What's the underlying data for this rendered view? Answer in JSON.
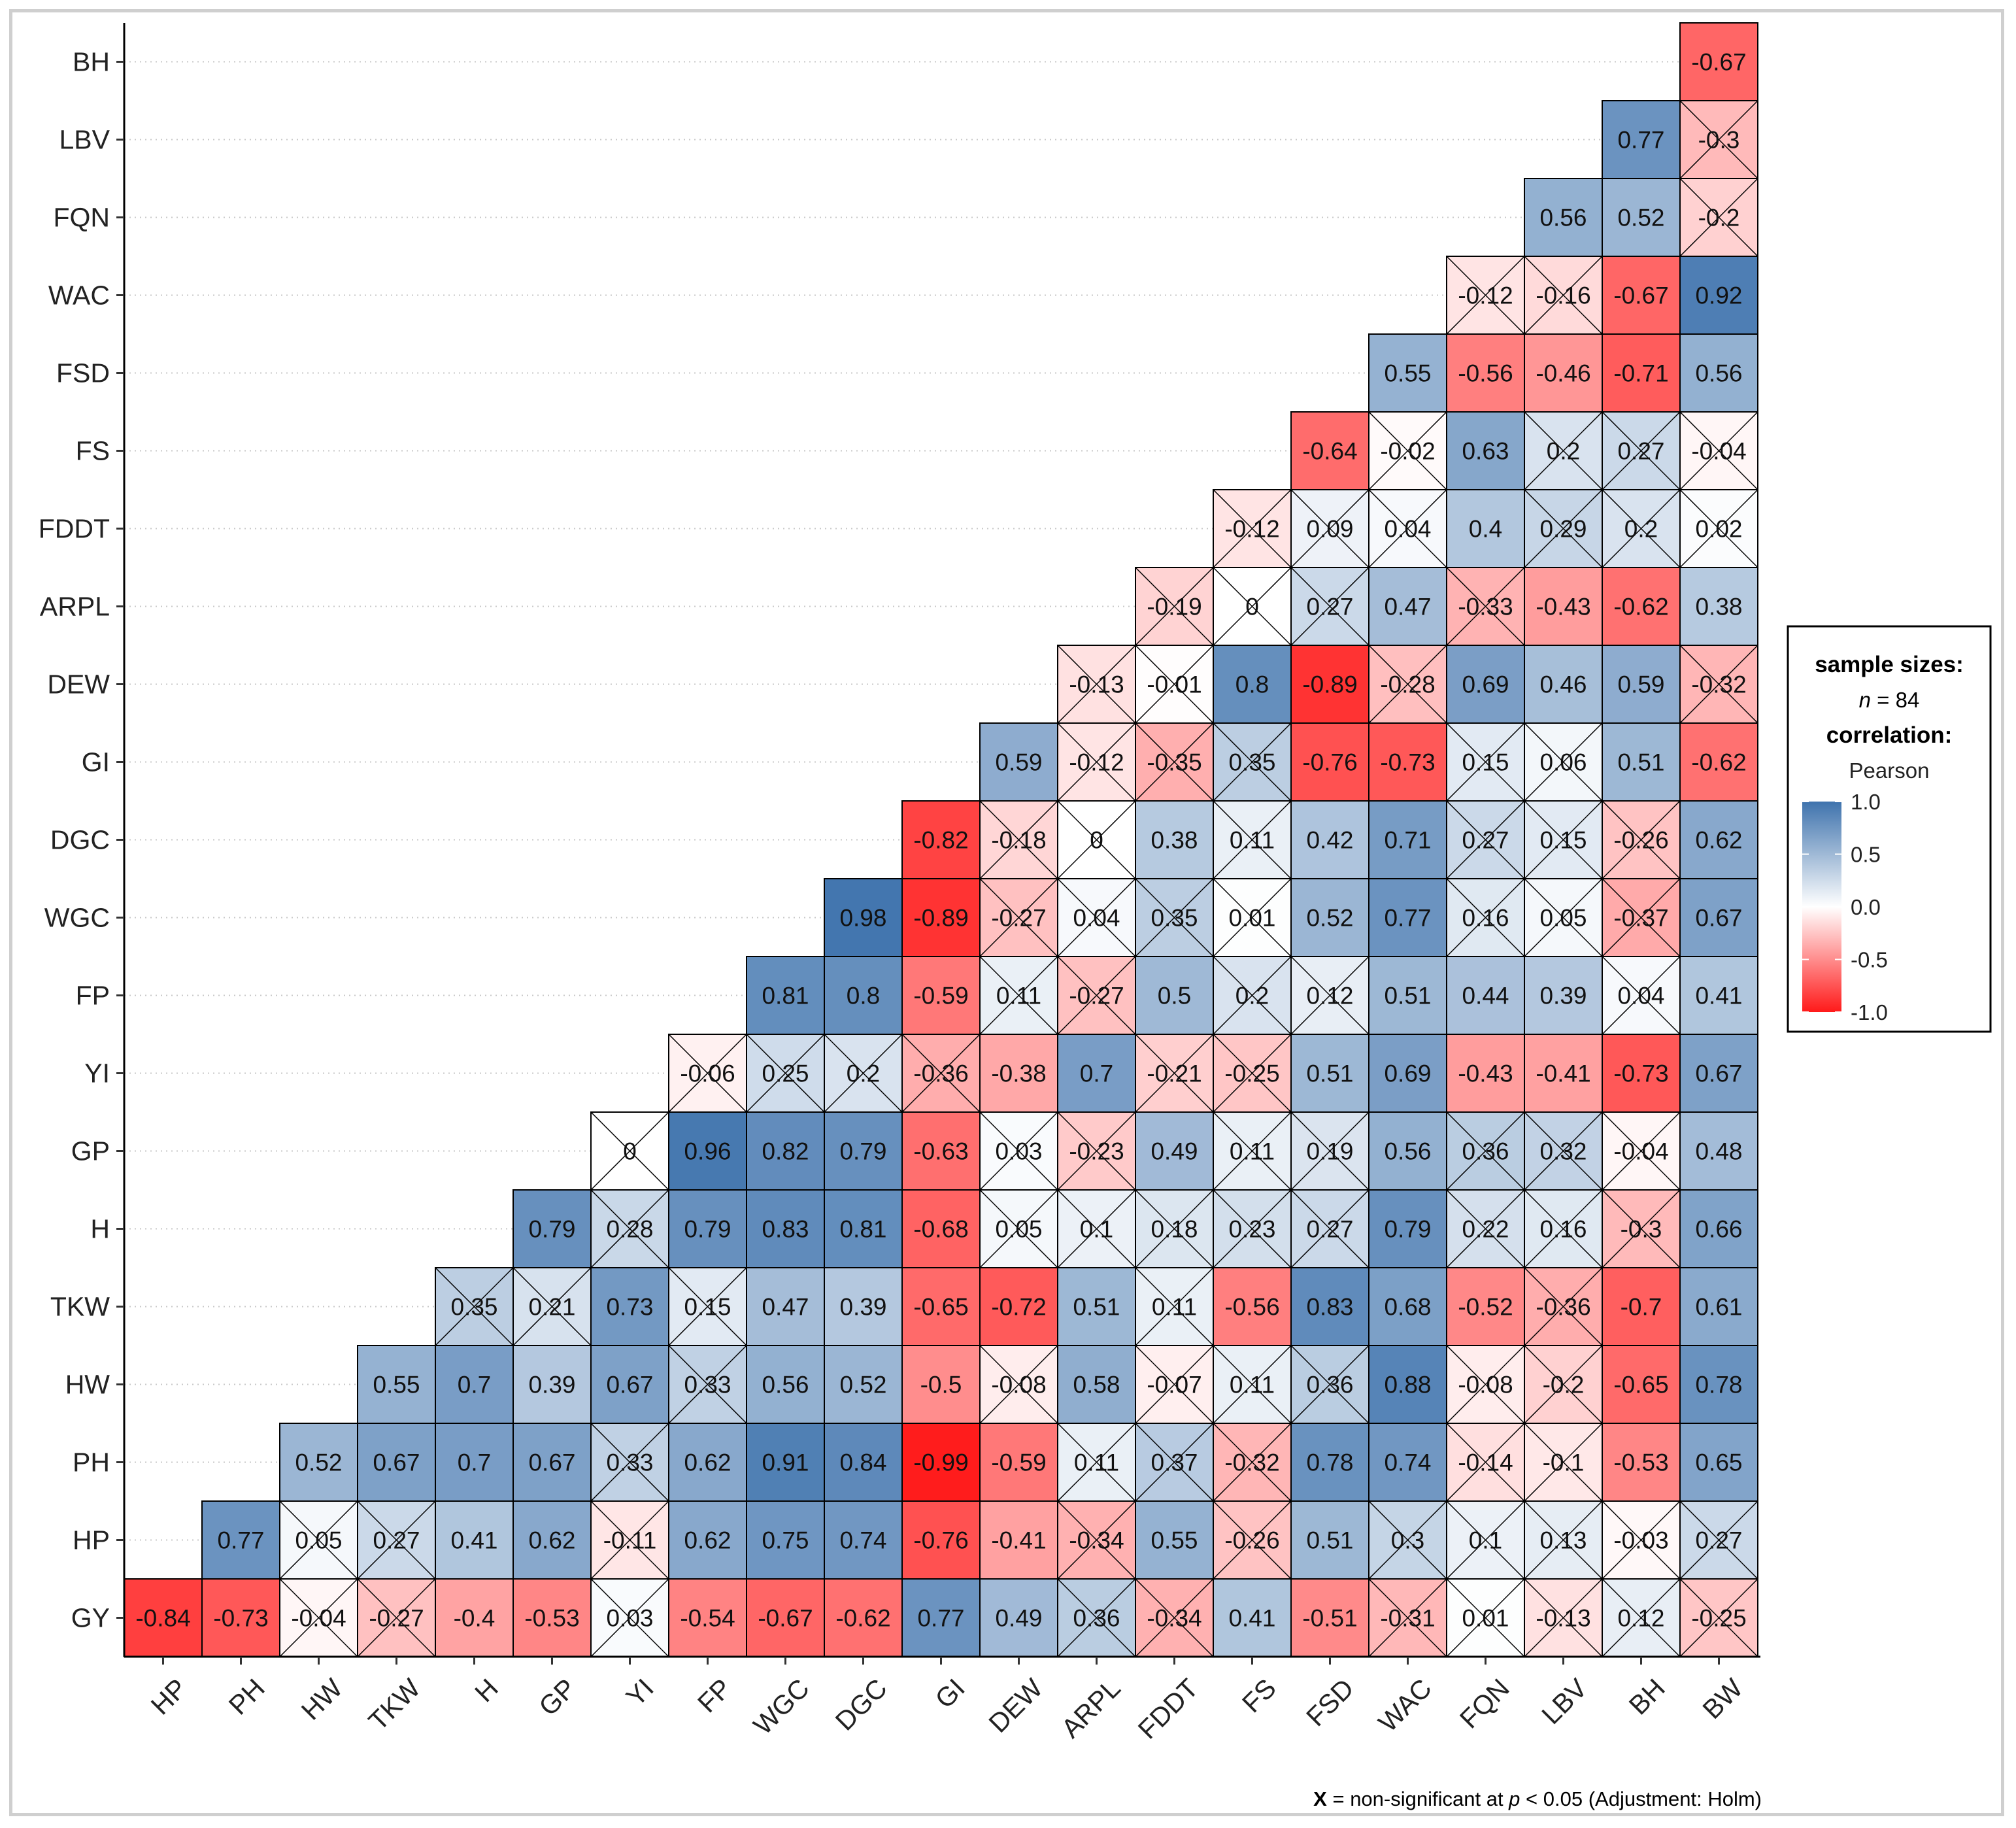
{
  "chart_data": {
    "type": "heatmap",
    "title": "",
    "x_labels": [
      "HP",
      "PH",
      "HW",
      "TKW",
      "H",
      "GP",
      "YI",
      "FP",
      "WGC",
      "DGC",
      "GI",
      "DEW",
      "ARPL",
      "FDDT",
      "FS",
      "FSD",
      "WAC",
      "FQN",
      "LBV",
      "BH",
      "BW"
    ],
    "y_labels": [
      "GY",
      "HP",
      "PH",
      "HW",
      "TKW",
      "H",
      "GP",
      "YI",
      "FP",
      "WGC",
      "DGC",
      "GI",
      "DEW",
      "ARPL",
      "FDDT",
      "FS",
      "FSD",
      "WAC",
      "FQN",
      "LBV",
      "BH"
    ],
    "rows": [
      {
        "y": "GY",
        "values": [
          -0.84,
          -0.73,
          -0.04,
          -0.27,
          -0.4,
          -0.53,
          0.03,
          -0.54,
          -0.67,
          -0.62,
          0.77,
          0.49,
          0.36,
          -0.34,
          0.41,
          -0.51,
          -0.31,
          0.01,
          -0.13,
          0.12,
          -0.25
        ],
        "nonsig": [
          false,
          false,
          true,
          true,
          false,
          false,
          true,
          false,
          false,
          false,
          false,
          false,
          true,
          true,
          false,
          false,
          true,
          true,
          true,
          true,
          true
        ]
      },
      {
        "y": "HP",
        "values": [
          0.77,
          0.05,
          0.27,
          0.41,
          0.62,
          -0.11,
          0.62,
          0.75,
          0.74,
          -0.76,
          -0.41,
          -0.34,
          0.55,
          -0.26,
          0.51,
          0.3,
          0.1,
          0.13,
          -0.03,
          0.27
        ],
        "nonsig": [
          false,
          true,
          true,
          false,
          false,
          true,
          false,
          false,
          false,
          false,
          false,
          true,
          false,
          true,
          false,
          true,
          true,
          true,
          true,
          true
        ]
      },
      {
        "y": "PH",
        "values": [
          0.52,
          0.67,
          0.7,
          0.67,
          0.33,
          0.62,
          0.91,
          0.84,
          -0.99,
          -0.59,
          0.11,
          0.37,
          -0.32,
          0.78,
          0.74,
          -0.14,
          -0.1,
          -0.53,
          0.65
        ],
        "nonsig": [
          false,
          false,
          false,
          false,
          true,
          false,
          false,
          false,
          false,
          false,
          true,
          true,
          true,
          false,
          false,
          true,
          true,
          false,
          false
        ]
      },
      {
        "y": "HW",
        "values": [
          0.55,
          0.7,
          0.39,
          0.67,
          0.33,
          0.56,
          0.52,
          -0.5,
          -0.08,
          0.58,
          -0.07,
          0.11,
          0.36,
          0.88,
          -0.08,
          -0.2,
          -0.65,
          0.78
        ],
        "nonsig": [
          false,
          false,
          false,
          false,
          true,
          false,
          false,
          false,
          true,
          false,
          true,
          true,
          true,
          false,
          true,
          true,
          false,
          false
        ]
      },
      {
        "y": "TKW",
        "values": [
          0.35,
          0.21,
          0.73,
          0.15,
          0.47,
          0.39,
          -0.65,
          -0.72,
          0.51,
          0.11,
          -0.56,
          0.83,
          0.68,
          -0.52,
          -0.36,
          -0.7,
          0.61
        ],
        "nonsig": [
          true,
          true,
          false,
          true,
          false,
          false,
          false,
          false,
          false,
          true,
          false,
          false,
          false,
          false,
          true,
          false,
          false
        ]
      },
      {
        "y": "H",
        "values": [
          0.79,
          0.28,
          0.79,
          0.83,
          0.81,
          -0.68,
          0.05,
          0.1,
          0.18,
          0.23,
          0.27,
          0.79,
          0.22,
          0.16,
          -0.3,
          0.66
        ],
        "nonsig": [
          false,
          true,
          false,
          false,
          false,
          false,
          true,
          true,
          true,
          true,
          true,
          false,
          true,
          true,
          true,
          false
        ]
      },
      {
        "y": "GP",
        "values": [
          0,
          0.96,
          0.82,
          0.79,
          -0.63,
          0.03,
          -0.23,
          0.49,
          0.11,
          0.19,
          0.56,
          0.36,
          0.32,
          -0.04,
          0.48
        ],
        "nonsig": [
          true,
          false,
          false,
          false,
          false,
          true,
          true,
          false,
          true,
          true,
          false,
          true,
          true,
          true,
          false
        ]
      },
      {
        "y": "YI",
        "values": [
          -0.06,
          0.25,
          0.2,
          -0.36,
          -0.38,
          0.7,
          -0.21,
          -0.25,
          0.51,
          0.69,
          -0.43,
          -0.41,
          -0.73,
          0.67
        ],
        "nonsig": [
          true,
          true,
          true,
          true,
          false,
          false,
          true,
          true,
          false,
          false,
          false,
          false,
          false,
          false
        ]
      },
      {
        "y": "FP",
        "values": [
          0.81,
          0.8,
          -0.59,
          0.11,
          -0.27,
          0.5,
          0.2,
          0.12,
          0.51,
          0.44,
          0.39,
          0.04,
          0.41
        ],
        "nonsig": [
          false,
          false,
          false,
          true,
          true,
          false,
          true,
          true,
          false,
          false,
          false,
          true,
          false
        ]
      },
      {
        "y": "WGC",
        "values": [
          0.98,
          -0.89,
          -0.27,
          0.04,
          0.35,
          0.01,
          0.52,
          0.77,
          0.16,
          0.05,
          -0.37,
          0.67
        ],
        "nonsig": [
          false,
          false,
          true,
          true,
          true,
          true,
          false,
          false,
          true,
          true,
          true,
          false
        ]
      },
      {
        "y": "DGC",
        "values": [
          -0.82,
          -0.18,
          0,
          0.38,
          0.11,
          0.42,
          0.71,
          0.27,
          0.15,
          -0.26,
          0.62
        ],
        "nonsig": [
          false,
          true,
          true,
          false,
          true,
          false,
          false,
          true,
          true,
          true,
          false
        ]
      },
      {
        "y": "GI",
        "values": [
          0.59,
          -0.12,
          -0.35,
          0.35,
          -0.76,
          -0.73,
          0.15,
          0.06,
          0.51,
          -0.62
        ],
        "nonsig": [
          false,
          true,
          true,
          true,
          false,
          false,
          true,
          true,
          false,
          false
        ]
      },
      {
        "y": "DEW",
        "values": [
          -0.13,
          -0.01,
          0.8,
          -0.89,
          -0.28,
          0.69,
          0.46,
          0.59,
          -0.32
        ],
        "nonsig": [
          true,
          true,
          false,
          false,
          true,
          false,
          false,
          false,
          true
        ]
      },
      {
        "y": "ARPL",
        "values": [
          -0.19,
          0,
          0.27,
          0.47,
          -0.33,
          -0.43,
          -0.62,
          0.38
        ],
        "nonsig": [
          true,
          true,
          true,
          false,
          true,
          false,
          false,
          false
        ]
      },
      {
        "y": "FDDT",
        "values": [
          -0.12,
          0.09,
          0.04,
          0.4,
          0.29,
          0.2,
          0.02
        ],
        "nonsig": [
          true,
          true,
          true,
          false,
          true,
          true,
          true
        ]
      },
      {
        "y": "FS",
        "values": [
          -0.64,
          -0.02,
          0.63,
          0.2,
          0.27,
          -0.04
        ],
        "nonsig": [
          false,
          true,
          false,
          true,
          true,
          true
        ]
      },
      {
        "y": "FSD",
        "values": [
          0.55,
          -0.56,
          -0.46,
          -0.71,
          0.56
        ],
        "nonsig": [
          false,
          false,
          false,
          false,
          false
        ]
      },
      {
        "y": "WAC",
        "values": [
          -0.12,
          -0.16,
          -0.67,
          0.92
        ],
        "nonsig": [
          true,
          true,
          false,
          false
        ]
      },
      {
        "y": "FQN",
        "values": [
          0.56,
          0.52,
          -0.2
        ],
        "nonsig": [
          false,
          false,
          true
        ]
      },
      {
        "y": "LBV",
        "values": [
          0.77,
          -0.3
        ],
        "nonsig": [
          false,
          true
        ]
      },
      {
        "y": "BH",
        "values": [
          -0.67
        ],
        "nonsig": [
          false
        ]
      }
    ],
    "color_scale": {
      "min": -1.0,
      "max": 1.0,
      "low": "#ff1a1a",
      "mid": "#ffffff",
      "high": "#3f73ad"
    },
    "legend": {
      "title1": "sample sizes:",
      "n_prefix": "n",
      "n_suffix": " = 84",
      "title2": "correlation:",
      "method": "Pearson",
      "ticks": [
        "1.0",
        "0.5",
        "0.0",
        "-0.5",
        "-1.0"
      ],
      "tick_values": [
        1.0,
        0.5,
        0.0,
        -0.5,
        -1.0
      ],
      "position": "right"
    },
    "caption": {
      "mark": "X",
      "text1": " = non-significant at ",
      "p": "p",
      "text2": " < 0.05 (Adjustment: Holm)"
    }
  }
}
